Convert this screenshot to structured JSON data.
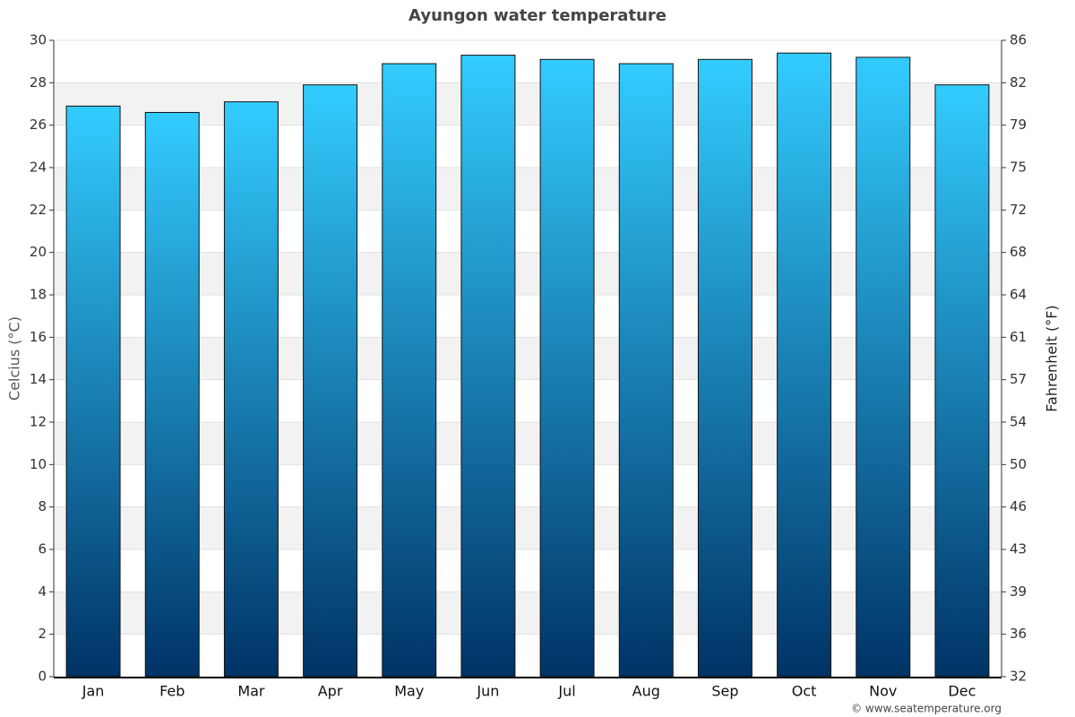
{
  "chart_data": {
    "type": "bar",
    "title": "Ayungon water temperature",
    "categories": [
      "Jan",
      "Feb",
      "Mar",
      "Apr",
      "May",
      "Jun",
      "Jul",
      "Aug",
      "Sep",
      "Oct",
      "Nov",
      "Dec"
    ],
    "values": [
      26.9,
      26.6,
      27.1,
      27.9,
      28.9,
      29.3,
      29.1,
      28.9,
      29.1,
      29.4,
      29.2,
      27.9
    ],
    "gradient": [
      "#33ccff",
      "#003366"
    ],
    "ylabel": "Celcius (°C)",
    "y2label": "Fahrenheit (°F)",
    "ylim": [
      0,
      30
    ],
    "yticks": [
      0,
      2,
      4,
      6,
      8,
      10,
      12,
      14,
      16,
      18,
      20,
      22,
      24,
      26,
      28,
      30
    ],
    "y2lim": [
      32,
      86
    ],
    "y2ticks": [
      32,
      {
        "value": 35.6,
        "label": "36"
      },
      {
        "value": 39.2,
        "label": "39"
      },
      {
        "value": 42.8,
        "label": "43"
      },
      {
        "value": 46.4,
        "label": "46"
      },
      50,
      {
        "value": 53.6,
        "label": "54"
      },
      {
        "value": 57.2,
        "label": "57"
      },
      {
        "value": 60.8,
        "label": "61"
      },
      {
        "value": 64.4,
        "label": "64"
      },
      68,
      {
        "value": 71.6,
        "label": "72"
      },
      {
        "value": 75.2,
        "label": "75"
      },
      {
        "value": 78.8,
        "label": "79"
      },
      {
        "value": 82.4,
        "label": "82"
      },
      86
    ],
    "grid": true,
    "credit": "© www.seatemperature.org"
  }
}
